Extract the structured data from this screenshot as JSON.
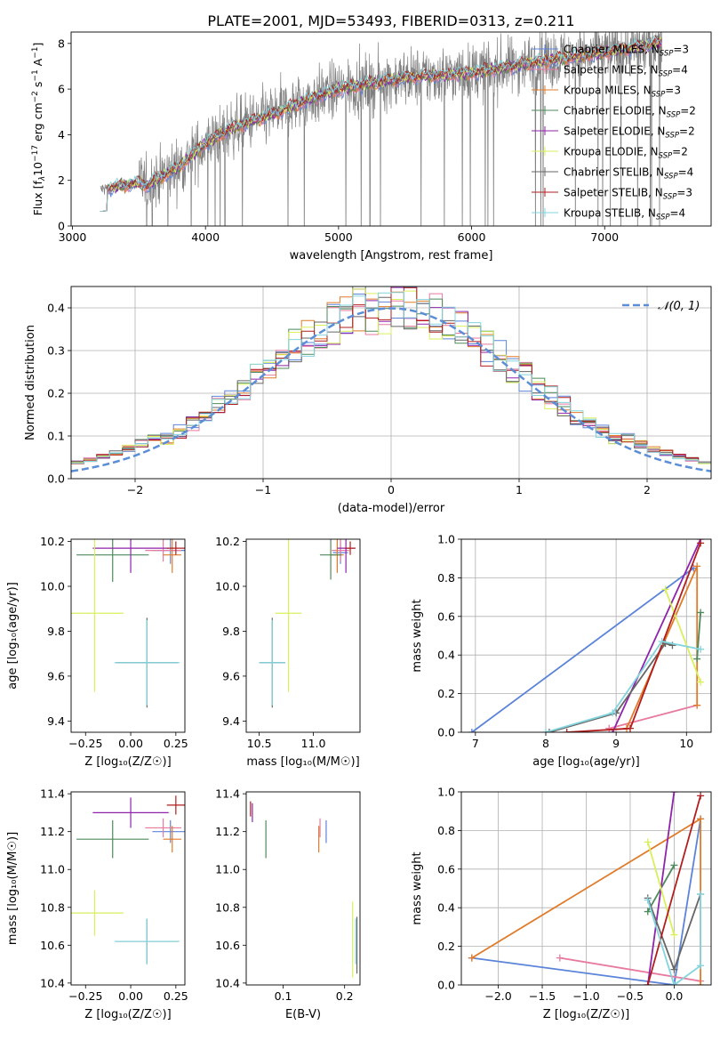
{
  "figure": {
    "title": "PLATE=2001, MJD=53493, FIBERID=0313, z=0.211"
  },
  "colors": {
    "chabrier_miles": "#5b84d9",
    "salpeter_miles": "#e8799f",
    "kroupa_miles": "#e07b2a",
    "chabrier_elodie": "#4e8a5b",
    "salpeter_elodie": "#8e24aa",
    "kroupa_elodie": "#d9ef5c",
    "chabrier_stelib": "#666666",
    "salpeter_stelib": "#b21e1e",
    "kroupa_stelib": "#82d4dd",
    "data": "#808080",
    "normal": "#5b8ed6",
    "grid": "#b0b0b0"
  },
  "chart_data": [
    {
      "id": "spectrum",
      "type": "line",
      "xlabel": "wavelength [Angstrom, rest frame]",
      "ylabel_parts": [
        "Flux [f",
        "λ",
        "10",
        "−17",
        " erg cm",
        "−2",
        " s",
        "−1",
        " A",
        "−1",
        "]"
      ],
      "xlim": [
        2990,
        7800
      ],
      "ylim": [
        0,
        8.5
      ],
      "xticks": [
        3000,
        4000,
        5000,
        6000,
        7000
      ],
      "yticks": [
        0,
        2,
        4,
        6,
        8
      ],
      "wavelength_range": [
        3210,
        7430
      ],
      "data_series": {
        "name": "",
        "x": [
          3210,
          3500,
          3560,
          3800,
          4000,
          4200,
          4500,
          4800,
          5000,
          5200,
          5500,
          6000,
          6500,
          7000,
          7400
        ],
        "y": [
          1.6,
          1.9,
          1.8,
          2.6,
          3.6,
          4.3,
          4.9,
          5.6,
          6.0,
          6.2,
          6.5,
          6.7,
          7.2,
          7.6,
          8.0
        ],
        "noise": 1.2
      },
      "model_series": [
        {
          "name": "Chabrier MILES, N",
          "sub": "SSP",
          "suffix": "=3",
          "color": "#5b84d9"
        },
        {
          "name": "Salpeter MILES, N",
          "sub": "SSP",
          "suffix": "=4",
          "color": "#e8799f"
        },
        {
          "name": "Kroupa MILES, N",
          "sub": "SSP",
          "suffix": "=3",
          "color": "#e07b2a"
        },
        {
          "name": "Chabrier ELODIE, N",
          "sub": "SSP",
          "suffix": "=2",
          "color": "#4e8a5b"
        },
        {
          "name": "Salpeter ELODIE, N",
          "sub": "SSP",
          "suffix": "=2",
          "color": "#8e24aa"
        },
        {
          "name": "Kroupa ELODIE, N",
          "sub": "SSP",
          "suffix": "=2",
          "color": "#d9ef5c"
        },
        {
          "name": "Chabrier STELIB, N",
          "sub": "SSP",
          "suffix": "=4",
          "color": "#666666"
        },
        {
          "name": "Salpeter STELIB, N",
          "sub": "SSP",
          "suffix": "=3",
          "color": "#b21e1e"
        },
        {
          "name": "Kroupa STELIB, N",
          "sub": "SSP",
          "suffix": "=4",
          "color": "#82d4dd"
        }
      ],
      "legend": "upper right"
    },
    {
      "id": "residuals",
      "type": "histogram",
      "xlabel": "(data-model)/error",
      "ylabel": "Normed distribution",
      "xlim": [
        -2.5,
        2.5
      ],
      "ylim": [
        0,
        0.45
      ],
      "xticks": [
        -2,
        -1,
        0,
        1,
        2
      ],
      "yticks": [
        0.0,
        0.1,
        0.2,
        0.3,
        0.4
      ],
      "bin_width": 0.1,
      "legend_label": "𝒩(0, 1)",
      "legend": "upper right",
      "grid": true,
      "peak_bins": {
        "x": [
          -0.3,
          -0.2,
          -0.1,
          0.0,
          0.1
        ],
        "max": 0.455
      }
    },
    {
      "id": "age_vs_Z",
      "type": "errorbar",
      "xlabel": "Z [log₁₀(Z/Z☉)]",
      "ylabel": "age  [log₁₀(age/yr)]",
      "xlim": [
        -0.33,
        0.3
      ],
      "ylim": [
        9.35,
        10.21
      ],
      "xticks": [
        -0.25,
        0.0,
        0.25
      ],
      "xticklabels": [
        "−0.25",
        "0.00",
        "0.25"
      ],
      "yticks": [
        9.4,
        9.6,
        9.8,
        10.0,
        10.2
      ],
      "points": [
        {
          "series": "chabrier_miles",
          "x": 0.22,
          "xerr": 0.1,
          "y": 10.16,
          "yerr": 0.06
        },
        {
          "series": "salpeter_miles",
          "x": 0.18,
          "xerr": 0.1,
          "y": 10.16,
          "yerr": 0.05
        },
        {
          "series": "kroupa_miles",
          "x": 0.23,
          "xerr": 0.05,
          "y": 10.14,
          "yerr": 0.08
        },
        {
          "series": "chabrier_elodie",
          "x": -0.1,
          "xerr": 0.2,
          "y": 10.14,
          "yerr": 0.12
        },
        {
          "series": "salpeter_elodie",
          "x": 0.0,
          "xerr": 0.21,
          "y": 10.17,
          "yerr": 0.11
        },
        {
          "series": "kroupa_elodie",
          "x": -0.2,
          "xerr": 0.16,
          "y": 9.88,
          "yerr": 0.35
        },
        {
          "series": "chabrier_stelib",
          "x": 0.09,
          "xerr": 0.17,
          "y": 9.66,
          "yerr": 0.2
        },
        {
          "series": "salpeter_stelib",
          "x": 0.25,
          "xerr": 0.05,
          "y": 10.17,
          "yerr": 0.03
        },
        {
          "series": "kroupa_stelib",
          "x": 0.09,
          "xerr": 0.18,
          "y": 9.66,
          "yerr": 0.19
        }
      ]
    },
    {
      "id": "age_vs_mass",
      "type": "errorbar",
      "xlabel": "mass [log₁₀(M/M☉)]",
      "xlim": [
        10.38,
        11.43
      ],
      "ylim": [
        9.35,
        10.21
      ],
      "xticks": [
        10.5,
        11.0
      ],
      "yticks": [
        9.4,
        9.6,
        9.8,
        10.0,
        10.2
      ],
      "points": [
        {
          "series": "chabrier_miles",
          "x": 11.25,
          "xerr": 0.07,
          "y": 10.15,
          "yerr": 0.05
        },
        {
          "series": "salpeter_miles",
          "x": 11.25,
          "xerr": 0.08,
          "y": 10.16,
          "yerr": 0.05
        },
        {
          "series": "kroupa_miles",
          "x": 11.22,
          "xerr": 0.06,
          "y": 10.14,
          "yerr": 0.08
        },
        {
          "series": "chabrier_elodie",
          "x": 11.16,
          "xerr": 0.1,
          "y": 10.14,
          "yerr": 0.11
        },
        {
          "series": "salpeter_elodie",
          "x": 11.3,
          "xerr": 0.08,
          "y": 10.17,
          "yerr": 0.11
        },
        {
          "series": "kroupa_elodie",
          "x": 10.77,
          "xerr": 0.12,
          "y": 9.88,
          "yerr": 0.35
        },
        {
          "series": "chabrier_stelib",
          "x": 10.62,
          "xerr": 0.12,
          "y": 9.66,
          "yerr": 0.2
        },
        {
          "series": "salpeter_stelib",
          "x": 11.34,
          "xerr": 0.05,
          "y": 10.17,
          "yerr": 0.03
        },
        {
          "series": "kroupa_stelib",
          "x": 10.62,
          "xerr": 0.12,
          "y": 9.66,
          "yerr": 0.19
        }
      ]
    },
    {
      "id": "weight_vs_age",
      "type": "line",
      "xlabel": "age  [log₁₀(age/yr)]",
      "ylabel": "mass weight",
      "xlim": [
        6.8,
        10.35
      ],
      "ylim": [
        0,
        1
      ],
      "xticks": [
        7,
        8,
        9,
        10
      ],
      "yticks": [
        0.0,
        0.2,
        0.4,
        0.6,
        0.8,
        1.0
      ],
      "grid": true,
      "series": [
        {
          "series": "chabrier_miles",
          "x": [
            6.95,
            10.1
          ],
          "y": [
            0.0,
            0.85
          ]
        },
        {
          "series": "salpeter_miles",
          "x": [
            8.9,
            10.15
          ],
          "y": [
            0.02,
            0.14
          ]
        },
        {
          "series": "kroupa_miles",
          "x": [
            9.15,
            10.15,
            10.15
          ],
          "y": [
            0.02,
            0.86,
            0.14
          ]
        },
        {
          "series": "chabrier_elodie",
          "x": [
            10.15,
            10.2
          ],
          "y": [
            0.38,
            0.62
          ]
        },
        {
          "series": "salpeter_elodie",
          "x": [
            8.95,
            10.2
          ],
          "y": [
            0.0,
            1.0
          ]
        },
        {
          "series": "kroupa_elodie",
          "x": [
            9.7,
            10.2
          ],
          "y": [
            0.74,
            0.26
          ]
        },
        {
          "series": "chabrier_stelib",
          "x": [
            8.05,
            9.0,
            9.7,
            9.8
          ],
          "y": [
            0.0,
            0.1,
            0.46,
            0.45
          ]
        },
        {
          "series": "salpeter_stelib",
          "x": [
            8.3,
            9.2,
            10.2
          ],
          "y": [
            0.0,
            0.02,
            0.98
          ]
        },
        {
          "series": "kroupa_stelib",
          "x": [
            8.0,
            8.95,
            9.65,
            10.2
          ],
          "y": [
            0.0,
            0.1,
            0.47,
            0.43
          ]
        }
      ]
    },
    {
      "id": "mass_vs_Z",
      "type": "errorbar",
      "xlabel": "Z [log₁₀(Z/Z☉)]",
      "ylabel": "mass [log₁₀(M/M☉)]",
      "xlim": [
        -0.33,
        0.3
      ],
      "ylim": [
        10.39,
        11.41
      ],
      "xticks": [
        -0.25,
        0.0,
        0.25
      ],
      "xticklabels": [
        "−0.25",
        "0.00",
        "0.25"
      ],
      "yticks": [
        10.4,
        10.6,
        10.8,
        11.0,
        11.2,
        11.4
      ],
      "points": [
        {
          "series": "chabrier_miles",
          "x": 0.22,
          "xerr": 0.1,
          "y": 11.2,
          "yerr": 0.06
        },
        {
          "series": "salpeter_miles",
          "x": 0.18,
          "xerr": 0.1,
          "y": 11.22,
          "yerr": 0.05
        },
        {
          "series": "kroupa_miles",
          "x": 0.23,
          "xerr": 0.05,
          "y": 11.16,
          "yerr": 0.07
        },
        {
          "series": "chabrier_elodie",
          "x": -0.1,
          "xerr": 0.2,
          "y": 11.16,
          "yerr": 0.1
        },
        {
          "series": "salpeter_elodie",
          "x": 0.0,
          "xerr": 0.21,
          "y": 11.3,
          "yerr": 0.08
        },
        {
          "series": "kroupa_elodie",
          "x": -0.2,
          "xerr": 0.16,
          "y": 10.77,
          "yerr": 0.12
        },
        {
          "series": "chabrier_stelib",
          "x": 0.09,
          "xerr": 0.17,
          "y": 10.62,
          "yerr": 0.12
        },
        {
          "series": "salpeter_stelib",
          "x": 0.25,
          "xerr": 0.05,
          "y": 11.34,
          "yerr": 0.05
        },
        {
          "series": "kroupa_stelib",
          "x": 0.09,
          "xerr": 0.18,
          "y": 10.62,
          "yerr": 0.12
        }
      ]
    },
    {
      "id": "mass_vs_ebv",
      "type": "errorbar",
      "xlabel": "E(B-V)",
      "xlim": [
        0.04,
        0.225
      ],
      "ylim": [
        10.39,
        11.41
      ],
      "xticks": [
        0.1,
        0.2
      ],
      "yticks": [
        10.4,
        10.6,
        10.8,
        11.0,
        11.2,
        11.4
      ],
      "points": [
        {
          "series": "chabrier_miles",
          "x": 0.17,
          "xerr": 0,
          "y": 11.2,
          "yerr": 0.06
        },
        {
          "series": "salpeter_miles",
          "x": 0.16,
          "xerr": 0,
          "y": 11.22,
          "yerr": 0.05
        },
        {
          "series": "kroupa_miles",
          "x": 0.158,
          "xerr": 0,
          "y": 11.16,
          "yerr": 0.07
        },
        {
          "series": "chabrier_elodie",
          "x": 0.072,
          "xerr": 0,
          "y": 11.16,
          "yerr": 0.1
        },
        {
          "series": "salpeter_elodie",
          "x": 0.05,
          "xerr": 0,
          "y": 11.3,
          "yerr": 0.05
        },
        {
          "series": "kroupa_elodie",
          "x": 0.213,
          "xerr": 0,
          "y": 10.63,
          "yerr": 0.2
        },
        {
          "series": "chabrier_stelib",
          "x": 0.22,
          "xerr": 0,
          "y": 10.6,
          "yerr": 0.15
        },
        {
          "series": "salpeter_stelib",
          "x": 0.047,
          "xerr": 0,
          "y": 11.32,
          "yerr": 0.04
        },
        {
          "series": "kroupa_stelib",
          "x": 0.218,
          "xerr": 0,
          "y": 10.62,
          "yerr": 0.12
        }
      ]
    },
    {
      "id": "weight_vs_Z",
      "type": "line",
      "xlabel": "Z [log₁₀(Z/Z☉)]",
      "ylabel": "mass weight",
      "xlim": [
        -2.42,
        0.42
      ],
      "ylim": [
        0,
        1
      ],
      "xticks": [
        -2.0,
        -1.5,
        -1.0,
        -0.5,
        0.0
      ],
      "xticklabels": [
        "−2.0",
        "−1.5",
        "−1.0",
        "−0.5",
        "0.0"
      ],
      "yticks": [
        0.0,
        0.2,
        0.4,
        0.6,
        0.8,
        1.0
      ],
      "grid": true,
      "series": [
        {
          "series": "chabrier_miles",
          "x": [
            -2.3,
            0.0,
            0.3
          ],
          "y": [
            0.14,
            0.0,
            0.86
          ]
        },
        {
          "series": "salpeter_miles",
          "x": [
            -1.3,
            0.3
          ],
          "y": [
            0.14,
            0.02
          ]
        },
        {
          "series": "kroupa_miles",
          "x": [
            -2.3,
            0.3,
            0.3
          ],
          "y": [
            0.14,
            0.86,
            0.0
          ]
        },
        {
          "series": "chabrier_elodie",
          "x": [
            -0.3,
            0.0
          ],
          "y": [
            0.38,
            0.62
          ]
        },
        {
          "series": "salpeter_elodie",
          "x": [
            -0.3,
            0.0
          ],
          "y": [
            0.0,
            1.0
          ]
        },
        {
          "series": "kroupa_elodie",
          "x": [
            -0.3,
            0.0
          ],
          "y": [
            0.74,
            0.26
          ]
        },
        {
          "series": "chabrier_stelib",
          "x": [
            -0.3,
            0.0,
            0.3
          ],
          "y": [
            0.45,
            0.08,
            0.47
          ]
        },
        {
          "series": "salpeter_stelib",
          "x": [
            -0.3,
            0.3
          ],
          "y": [
            0.0,
            0.98
          ]
        },
        {
          "series": "kroupa_stelib",
          "x": [
            -0.3,
            0.0,
            0.3,
            0.3
          ],
          "y": [
            0.44,
            0.0,
            0.1,
            0.47
          ]
        }
      ]
    }
  ]
}
